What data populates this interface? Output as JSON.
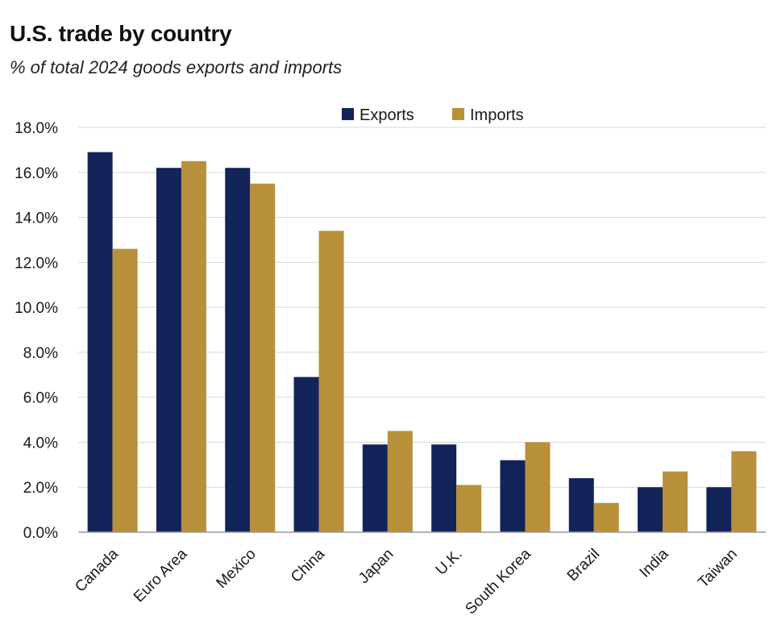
{
  "chart_data": {
    "type": "bar",
    "title": "U.S. trade by country",
    "subtitle": "% of total 2024 goods exports and imports",
    "xlabel": "",
    "ylabel": "",
    "categories": [
      "Canada",
      "Euro Area",
      "Mexico",
      "China",
      "Japan",
      "U.K.",
      "South Korea",
      "Brazil",
      "India",
      "Taiwan"
    ],
    "series": [
      {
        "name": "Exports",
        "color": "#13245a",
        "values": [
          16.9,
          16.2,
          16.2,
          6.9,
          3.9,
          3.9,
          3.2,
          2.4,
          2.0,
          2.0
        ]
      },
      {
        "name": "Imports",
        "color": "#b8903a",
        "values": [
          12.6,
          16.5,
          15.5,
          13.4,
          4.5,
          2.1,
          4.0,
          1.3,
          2.7,
          3.6
        ]
      }
    ],
    "ylim": [
      0,
      18
    ],
    "yticks": [
      "0.0%",
      "2.0%",
      "4.0%",
      "6.0%",
      "8.0%",
      "10.0%",
      "12.0%",
      "14.0%",
      "16.0%",
      "18.0%"
    ],
    "grid": true,
    "legend_position": "top-right",
    "axis_color": "#9a9a9a",
    "grid_color": "#d9d9d9"
  }
}
